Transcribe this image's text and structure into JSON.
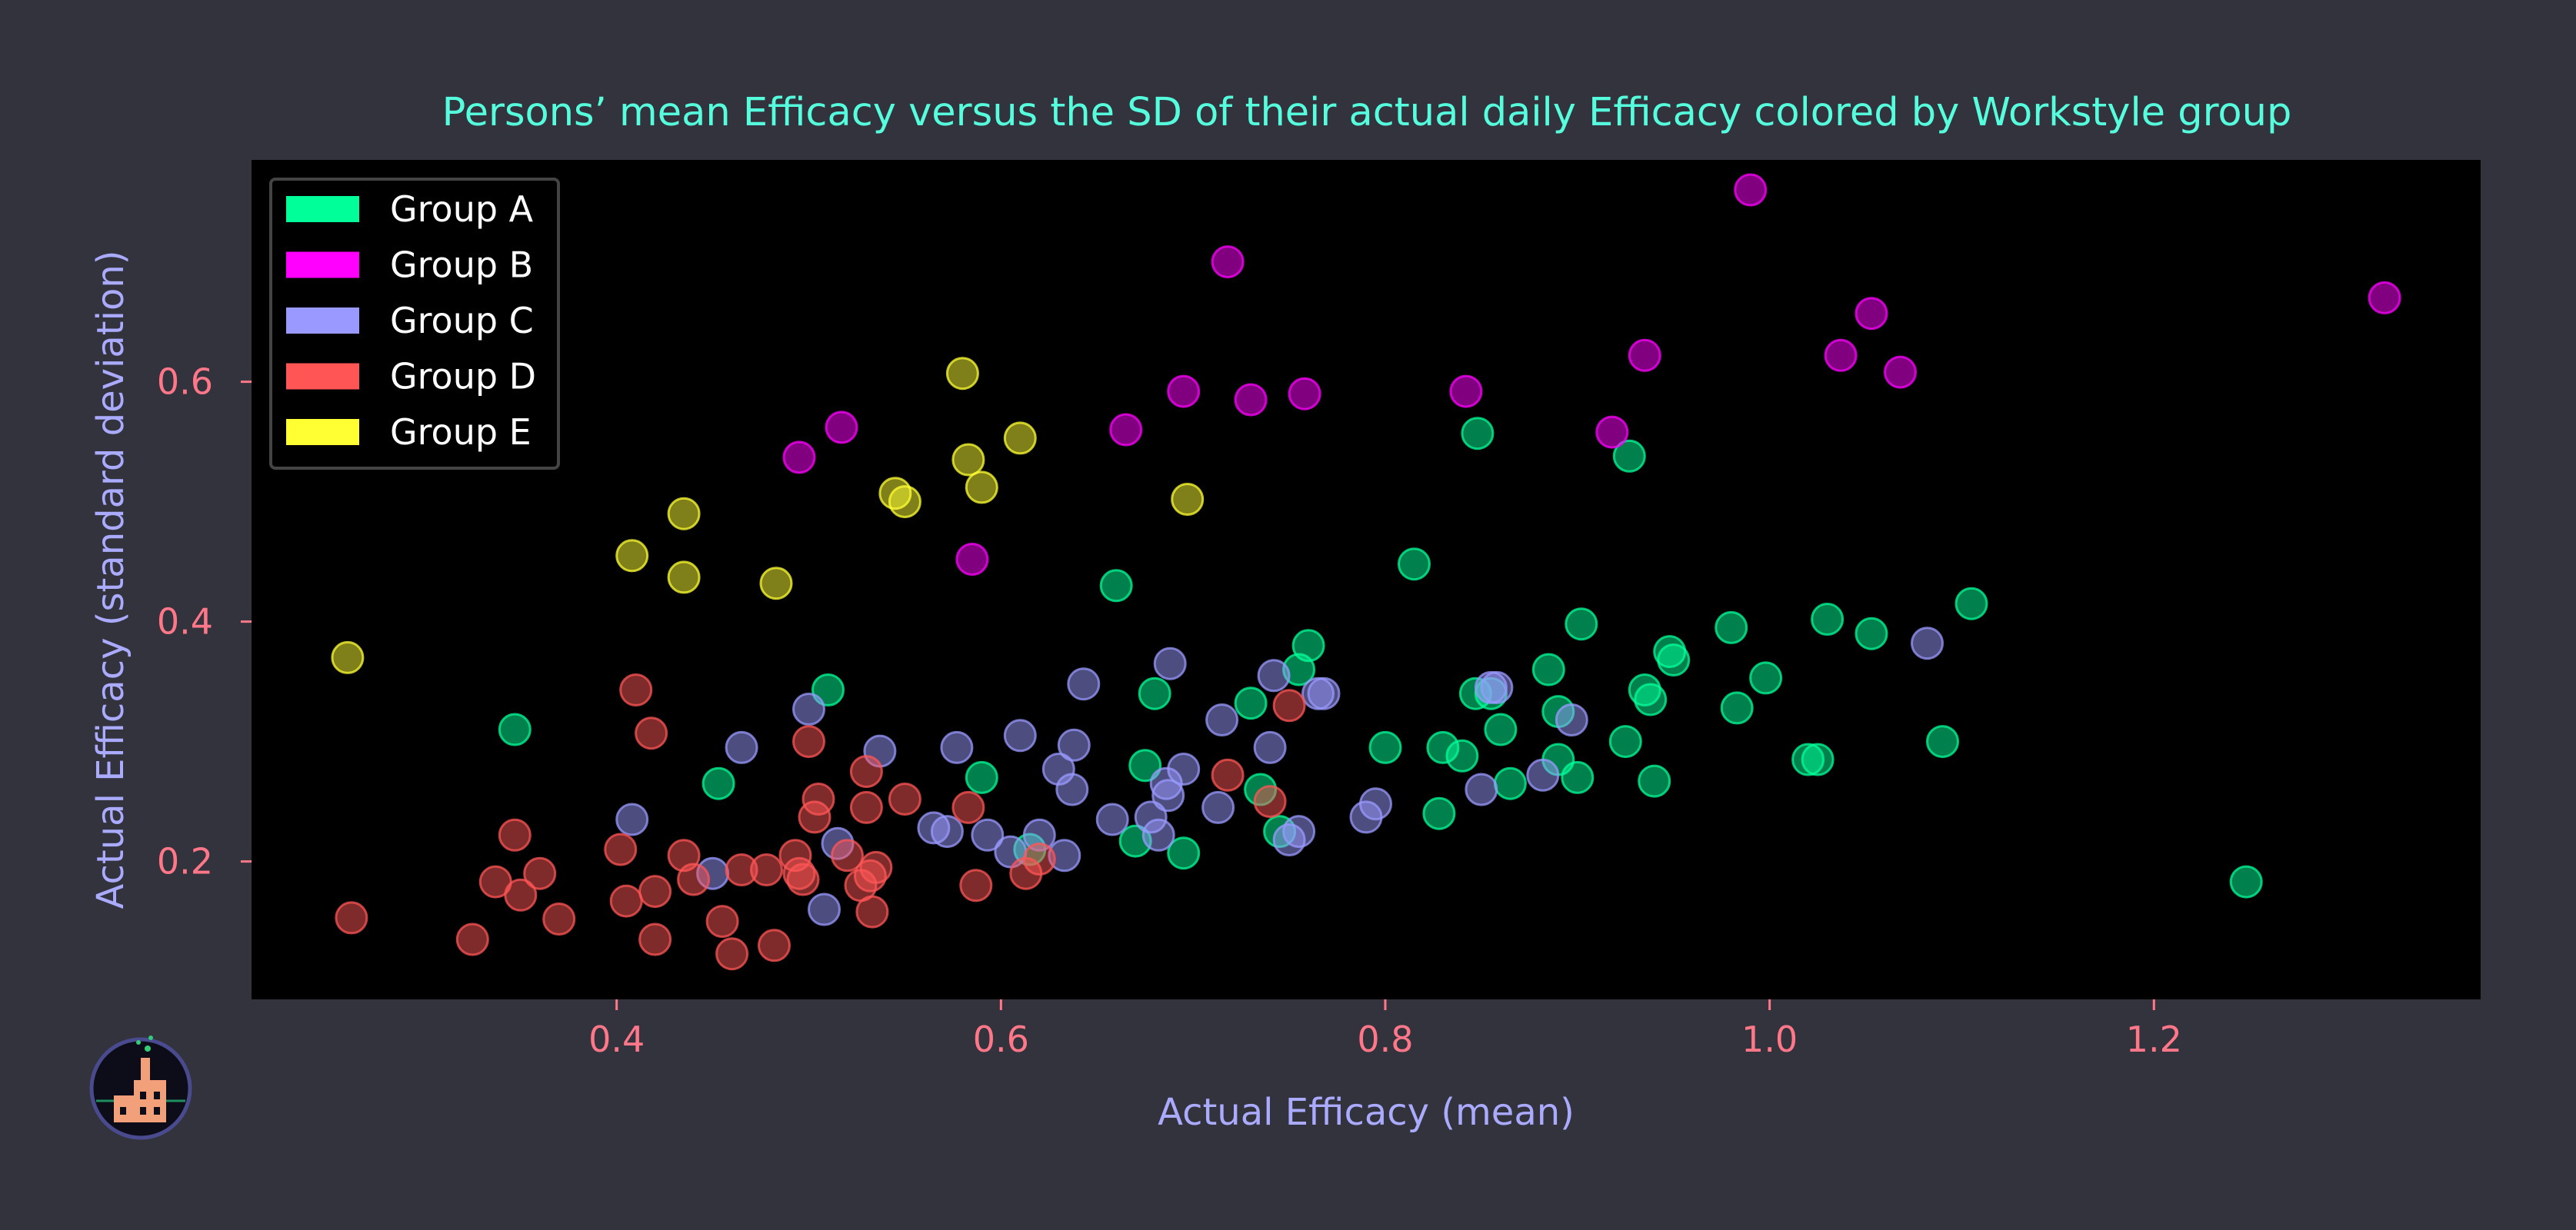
{
  "chart_data": {
    "type": "scatter",
    "title": "Persons’ mean Efficacy versus the SD of their actual daily Efficacy colored by Workstyle group",
    "xlabel": "Actual Efficacy (mean)",
    "ylabel": "Actual Efficacy (standard deviation)",
    "xlim": [
      0.21,
      1.37
    ],
    "ylim": [
      0.085,
      0.785
    ],
    "xticks": [
      0.4,
      0.6,
      0.8,
      1.0,
      1.2
    ],
    "yticks": [
      0.2,
      0.4,
      0.6
    ],
    "xtick_labels": [
      "0.4",
      "0.6",
      "0.8",
      "1.0",
      "1.2"
    ],
    "ytick_labels": [
      "0.2",
      "0.4",
      "0.6"
    ],
    "grid": false,
    "legend_position": "top-left",
    "series": [
      {
        "name": "Group A",
        "color": "#00ff99",
        "points": [
          [
            0.347,
            0.31
          ],
          [
            0.453,
            0.265
          ],
          [
            0.51,
            0.343
          ],
          [
            0.59,
            0.27
          ],
          [
            0.615,
            0.21
          ],
          [
            0.66,
            0.43
          ],
          [
            0.67,
            0.217
          ],
          [
            0.675,
            0.28
          ],
          [
            0.68,
            0.34
          ],
          [
            0.695,
            0.207
          ],
          [
            0.73,
            0.332
          ],
          [
            0.735,
            0.26
          ],
          [
            0.745,
            0.225
          ],
          [
            0.755,
            0.36
          ],
          [
            0.76,
            0.38
          ],
          [
            0.8,
            0.295
          ],
          [
            0.815,
            0.448
          ],
          [
            0.828,
            0.24
          ],
          [
            0.83,
            0.295
          ],
          [
            0.84,
            0.288
          ],
          [
            0.847,
            0.34
          ],
          [
            0.848,
            0.557
          ],
          [
            0.855,
            0.34
          ],
          [
            0.86,
            0.31
          ],
          [
            0.865,
            0.265
          ],
          [
            0.885,
            0.36
          ],
          [
            0.89,
            0.325
          ],
          [
            0.89,
            0.285
          ],
          [
            0.9,
            0.27
          ],
          [
            0.902,
            0.398
          ],
          [
            0.925,
            0.3
          ],
          [
            0.927,
            0.538
          ],
          [
            0.935,
            0.343
          ],
          [
            0.938,
            0.335
          ],
          [
            0.94,
            0.267
          ],
          [
            0.948,
            0.375
          ],
          [
            0.95,
            0.368
          ],
          [
            0.98,
            0.395
          ],
          [
            0.983,
            0.328
          ],
          [
            0.998,
            0.353
          ],
          [
            1.02,
            0.285
          ],
          [
            1.025,
            0.285
          ],
          [
            1.03,
            0.402
          ],
          [
            1.053,
            0.39
          ],
          [
            1.09,
            0.3
          ],
          [
            1.105,
            0.415
          ],
          [
            1.248,
            0.183
          ]
        ]
      },
      {
        "name": "Group B",
        "color": "#ff00ff",
        "points": [
          [
            0.495,
            0.537
          ],
          [
            0.517,
            0.562
          ],
          [
            0.585,
            0.452
          ],
          [
            0.665,
            0.56
          ],
          [
            0.695,
            0.592
          ],
          [
            0.718,
            0.7
          ],
          [
            0.73,
            0.585
          ],
          [
            0.758,
            0.59
          ],
          [
            0.842,
            0.592
          ],
          [
            0.918,
            0.558
          ],
          [
            0.935,
            0.622
          ],
          [
            0.99,
            0.76
          ],
          [
            1.037,
            0.622
          ],
          [
            1.053,
            0.657
          ],
          [
            1.068,
            0.608
          ],
          [
            1.32,
            0.67
          ]
        ]
      },
      {
        "name": "Group C",
        "color": "#9999ff",
        "points": [
          [
            0.408,
            0.235
          ],
          [
            0.45,
            0.19
          ],
          [
            0.465,
            0.295
          ],
          [
            0.5,
            0.327
          ],
          [
            0.508,
            0.16
          ],
          [
            0.515,
            0.215
          ],
          [
            0.537,
            0.292
          ],
          [
            0.565,
            0.228
          ],
          [
            0.572,
            0.225
          ],
          [
            0.577,
            0.295
          ],
          [
            0.593,
            0.222
          ],
          [
            0.605,
            0.208
          ],
          [
            0.61,
            0.305
          ],
          [
            0.62,
            0.222
          ],
          [
            0.63,
            0.277
          ],
          [
            0.633,
            0.205
          ],
          [
            0.637,
            0.26
          ],
          [
            0.638,
            0.297
          ],
          [
            0.643,
            0.348
          ],
          [
            0.658,
            0.235
          ],
          [
            0.678,
            0.237
          ],
          [
            0.682,
            0.222
          ],
          [
            0.686,
            0.265
          ],
          [
            0.687,
            0.255
          ],
          [
            0.688,
            0.365
          ],
          [
            0.695,
            0.277
          ],
          [
            0.713,
            0.245
          ],
          [
            0.715,
            0.318
          ],
          [
            0.74,
            0.295
          ],
          [
            0.742,
            0.355
          ],
          [
            0.75,
            0.218
          ],
          [
            0.755,
            0.225
          ],
          [
            0.765,
            0.34
          ],
          [
            0.768,
            0.34
          ],
          [
            0.79,
            0.237
          ],
          [
            0.795,
            0.248
          ],
          [
            0.85,
            0.26
          ],
          [
            0.855,
            0.345
          ],
          [
            0.858,
            0.345
          ],
          [
            0.882,
            0.272
          ],
          [
            0.897,
            0.318
          ],
          [
            1.082,
            0.382
          ]
        ]
      },
      {
        "name": "Group D",
        "color": "#ff5555",
        "points": [
          [
            0.262,
            0.153
          ],
          [
            0.325,
            0.135
          ],
          [
            0.337,
            0.183
          ],
          [
            0.347,
            0.222
          ],
          [
            0.35,
            0.172
          ],
          [
            0.36,
            0.19
          ],
          [
            0.37,
            0.152
          ],
          [
            0.402,
            0.21
          ],
          [
            0.405,
            0.167
          ],
          [
            0.41,
            0.343
          ],
          [
            0.418,
            0.307
          ],
          [
            0.42,
            0.175
          ],
          [
            0.42,
            0.135
          ],
          [
            0.435,
            0.205
          ],
          [
            0.44,
            0.185
          ],
          [
            0.455,
            0.15
          ],
          [
            0.46,
            0.123
          ],
          [
            0.465,
            0.193
          ],
          [
            0.478,
            0.193
          ],
          [
            0.482,
            0.13
          ],
          [
            0.493,
            0.205
          ],
          [
            0.495,
            0.19
          ],
          [
            0.497,
            0.185
          ],
          [
            0.5,
            0.3
          ],
          [
            0.503,
            0.237
          ],
          [
            0.505,
            0.252
          ],
          [
            0.52,
            0.205
          ],
          [
            0.527,
            0.18
          ],
          [
            0.53,
            0.275
          ],
          [
            0.53,
            0.245
          ],
          [
            0.532,
            0.188
          ],
          [
            0.533,
            0.158
          ],
          [
            0.535,
            0.195
          ],
          [
            0.55,
            0.252
          ],
          [
            0.583,
            0.245
          ],
          [
            0.587,
            0.18
          ],
          [
            0.613,
            0.19
          ],
          [
            0.62,
            0.202
          ],
          [
            0.718,
            0.272
          ],
          [
            0.74,
            0.25
          ],
          [
            0.75,
            0.33
          ]
        ]
      },
      {
        "name": "Group E",
        "color": "#ffff33",
        "points": [
          [
            0.26,
            0.37
          ],
          [
            0.408,
            0.455
          ],
          [
            0.435,
            0.49
          ],
          [
            0.435,
            0.437
          ],
          [
            0.483,
            0.432
          ],
          [
            0.545,
            0.507
          ],
          [
            0.55,
            0.5
          ],
          [
            0.58,
            0.607
          ],
          [
            0.583,
            0.535
          ],
          [
            0.59,
            0.512
          ],
          [
            0.61,
            0.553
          ],
          [
            0.697,
            0.502
          ]
        ]
      }
    ]
  },
  "logo": {
    "name": "factory-logo"
  }
}
